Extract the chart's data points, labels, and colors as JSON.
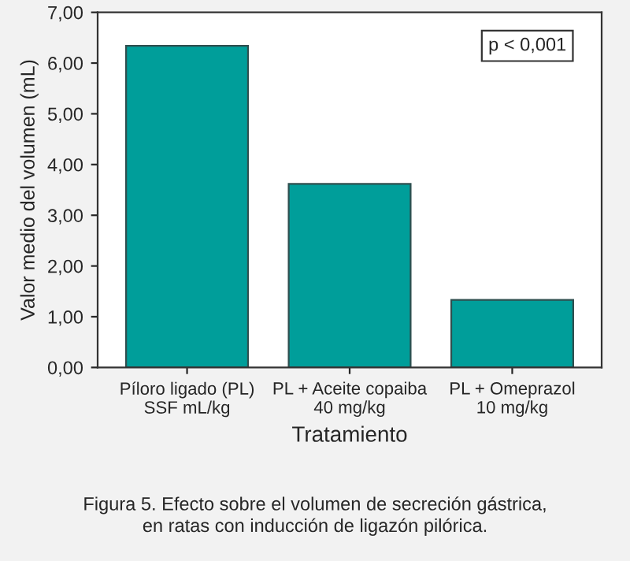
{
  "chart_data": {
    "type": "bar",
    "xlabel": "Tratamiento",
    "ylabel": "Valor medio del volumen (mL)",
    "categories": [
      "Píloro ligado (PL)\nSSF mL/kg",
      "PL + Aceite copaiba\n40 mg/kg",
      "PL + Omeprazol\n10 mg/kg"
    ],
    "values": [
      6.34,
      3.62,
      1.33
    ],
    "color": "#009e9a",
    "ylim": [
      0,
      7
    ],
    "yticks": [
      {
        "value": 0,
        "label": "0,00"
      },
      {
        "value": 1,
        "label": "1,00"
      },
      {
        "value": 2,
        "label": "2,00"
      },
      {
        "value": 3,
        "label": "3,00"
      },
      {
        "value": 4,
        "label": "4,00"
      },
      {
        "value": 5,
        "label": "5,00"
      },
      {
        "value": 6,
        "label": "6,00"
      },
      {
        "value": 7,
        "label": "7,00"
      }
    ],
    "grid": false,
    "annotations": [
      "p < 0,001",
      "Figura 5. Efecto sobre el volumen de secreción gástrica,\nen ratas con inducción de ligazón pilórica."
    ]
  }
}
